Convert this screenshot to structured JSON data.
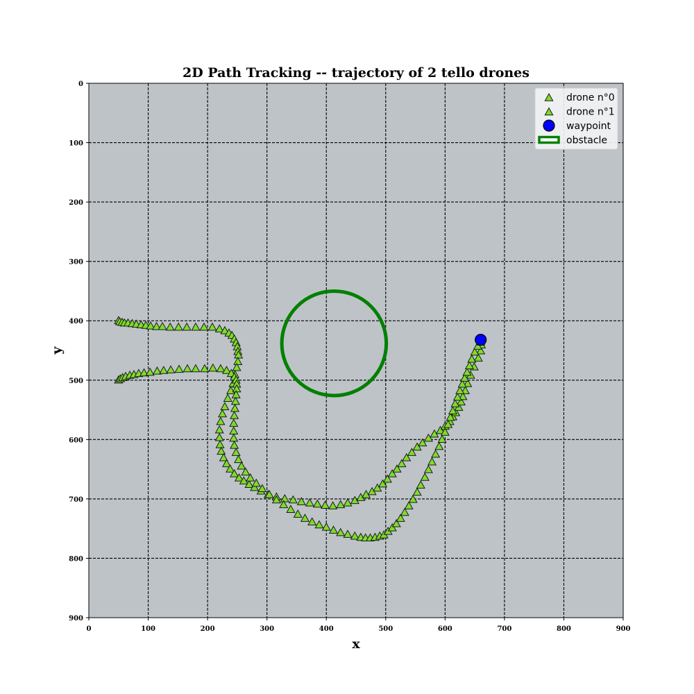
{
  "chart_data": {
    "type": "scatter",
    "title": "2D Path Tracking -- trajectory of 2 tello drones",
    "xlabel": "x",
    "ylabel": "y",
    "xlim": [
      0,
      900
    ],
    "ylim": [
      900,
      0
    ],
    "y_inverted": true,
    "xticks": [
      "0",
      "100",
      "200",
      "300",
      "400",
      "500",
      "600",
      "700",
      "800",
      "900"
    ],
    "yticks": [
      "0",
      "100",
      "200",
      "300",
      "400",
      "500",
      "600",
      "700",
      "800",
      "900"
    ],
    "grid": true,
    "legend_position": "top-right",
    "background_color": "#bec3c8",
    "series": [
      {
        "name": "drone n°0",
        "marker": "triangle",
        "color": "#7ddc2b",
        "points": [
          [
            50,
            400
          ],
          [
            52,
            402
          ],
          [
            56,
            403
          ],
          [
            60,
            404
          ],
          [
            66,
            404
          ],
          [
            73,
            405
          ],
          [
            80,
            406
          ],
          [
            88,
            407
          ],
          [
            96,
            408
          ],
          [
            104,
            409
          ],
          [
            114,
            410
          ],
          [
            124,
            410
          ],
          [
            137,
            411
          ],
          [
            151,
            411
          ],
          [
            165,
            411
          ],
          [
            180,
            411
          ],
          [
            194,
            411
          ],
          [
            208,
            411
          ],
          [
            220,
            414
          ],
          [
            229,
            417
          ],
          [
            236,
            421
          ],
          [
            241,
            425
          ],
          [
            245,
            431
          ],
          [
            248,
            437
          ],
          [
            250,
            444
          ],
          [
            251,
            452
          ],
          [
            252,
            458
          ],
          [
            251,
            469
          ],
          [
            249,
            479
          ],
          [
            246,
            491
          ],
          [
            243,
            506
          ],
          [
            239,
            518
          ],
          [
            234,
            531
          ],
          [
            229,
            545
          ],
          [
            225,
            557
          ],
          [
            222,
            570
          ],
          [
            220,
            584
          ],
          [
            220,
            597
          ],
          [
            221,
            609
          ],
          [
            223,
            620
          ],
          [
            227,
            631
          ],
          [
            232,
            641
          ],
          [
            238,
            650
          ],
          [
            245,
            658
          ],
          [
            253,
            665
          ],
          [
            261,
            670
          ],
          [
            270,
            676
          ],
          [
            279,
            681
          ],
          [
            290,
            687
          ],
          [
            302,
            693
          ],
          [
            316,
            697
          ],
          [
            330,
            700
          ],
          [
            344,
            702
          ],
          [
            358,
            705
          ],
          [
            372,
            707
          ],
          [
            385,
            709
          ],
          [
            398,
            711
          ],
          [
            411,
            712
          ],
          [
            424,
            710
          ],
          [
            436,
            707
          ],
          [
            448,
            703
          ],
          [
            458,
            698
          ],
          [
            467,
            693
          ],
          [
            477,
            688
          ],
          [
            486,
            682
          ],
          [
            495,
            675
          ],
          [
            503,
            667
          ],
          [
            511,
            658
          ],
          [
            519,
            650
          ],
          [
            527,
            641
          ],
          [
            535,
            631
          ],
          [
            544,
            622
          ],
          [
            553,
            613
          ],
          [
            562,
            606
          ],
          [
            572,
            598
          ],
          [
            582,
            591
          ],
          [
            592,
            585
          ],
          [
            600,
            578
          ],
          [
            608,
            570
          ],
          [
            613,
            562
          ],
          [
            618,
            555
          ],
          [
            623,
            546
          ],
          [
            627,
            537
          ],
          [
            630,
            528
          ],
          [
            634,
            518
          ],
          [
            638,
            506
          ],
          [
            643,
            492
          ],
          [
            649,
            478
          ],
          [
            656,
            463
          ],
          [
            660,
            451
          ],
          [
            661,
            441
          ]
        ]
      },
      {
        "name": "drone n°1",
        "marker": "triangle",
        "color": "#7ddc2b",
        "points": [
          [
            50,
            500
          ],
          [
            53,
            498
          ],
          [
            57,
            496
          ],
          [
            62,
            494
          ],
          [
            69,
            492
          ],
          [
            76,
            491
          ],
          [
            84,
            489
          ],
          [
            93,
            488
          ],
          [
            103,
            487
          ],
          [
            115,
            485
          ],
          [
            126,
            484
          ],
          [
            138,
            483
          ],
          [
            152,
            482
          ],
          [
            166,
            481
          ],
          [
            180,
            481
          ],
          [
            195,
            481
          ],
          [
            209,
            480
          ],
          [
            222,
            481
          ],
          [
            232,
            484
          ],
          [
            240,
            489
          ],
          [
            245,
            495
          ],
          [
            248,
            500
          ],
          [
            249,
            507
          ],
          [
            249,
            515
          ],
          [
            248,
            525
          ],
          [
            247,
            536
          ],
          [
            246,
            548
          ],
          [
            245,
            560
          ],
          [
            244,
            573
          ],
          [
            244,
            586
          ],
          [
            244,
            598
          ],
          [
            245,
            610
          ],
          [
            248,
            622
          ],
          [
            252,
            634
          ],
          [
            257,
            645
          ],
          [
            264,
            655
          ],
          [
            272,
            665
          ],
          [
            282,
            674
          ],
          [
            292,
            683
          ],
          [
            304,
            693
          ],
          [
            316,
            702
          ],
          [
            328,
            710
          ],
          [
            340,
            718
          ],
          [
            352,
            726
          ],
          [
            364,
            733
          ],
          [
            376,
            739
          ],
          [
            388,
            744
          ],
          [
            400,
            748
          ],
          [
            412,
            753
          ],
          [
            424,
            757
          ],
          [
            436,
            760
          ],
          [
            448,
            763
          ],
          [
            458,
            765
          ],
          [
            466,
            766
          ],
          [
            474,
            766
          ],
          [
            482,
            765
          ],
          [
            490,
            763
          ],
          [
            497,
            761
          ],
          [
            504,
            755
          ],
          [
            511,
            749
          ],
          [
            518,
            742
          ],
          [
            525,
            733
          ],
          [
            532,
            723
          ],
          [
            539,
            712
          ],
          [
            546,
            701
          ],
          [
            553,
            689
          ],
          [
            559,
            677
          ],
          [
            566,
            664
          ],
          [
            572,
            651
          ],
          [
            578,
            638
          ],
          [
            584,
            625
          ],
          [
            590,
            612
          ],
          [
            595,
            600
          ],
          [
            600,
            588
          ],
          [
            605,
            575
          ],
          [
            609,
            563
          ],
          [
            613,
            552
          ],
          [
            617,
            540
          ],
          [
            621,
            529
          ],
          [
            625,
            518
          ],
          [
            629,
            507
          ],
          [
            633,
            497
          ],
          [
            637,
            487
          ],
          [
            641,
            476
          ],
          [
            645,
            465
          ],
          [
            650,
            453
          ],
          [
            655,
            443
          ],
          [
            660,
            436
          ]
        ]
      },
      {
        "name": "waypoint",
        "marker": "circle",
        "color": "#0000ff",
        "points": [
          [
            660,
            432
          ]
        ]
      }
    ],
    "shapes": [
      {
        "name": "obstacle",
        "type": "circle",
        "color": "#008000",
        "center": [
          413,
          438
        ],
        "radius": 88
      }
    ],
    "legend": [
      {
        "label": "drone n°0",
        "marker": "triangle",
        "color": "#7ddc2b"
      },
      {
        "label": "drone n°1",
        "marker": "triangle",
        "color": "#7ddc2b"
      },
      {
        "label": "waypoint",
        "marker": "circle",
        "color": "#0000ff"
      },
      {
        "label": "obstacle",
        "marker": "ring-line",
        "color": "#008000"
      }
    ]
  }
}
